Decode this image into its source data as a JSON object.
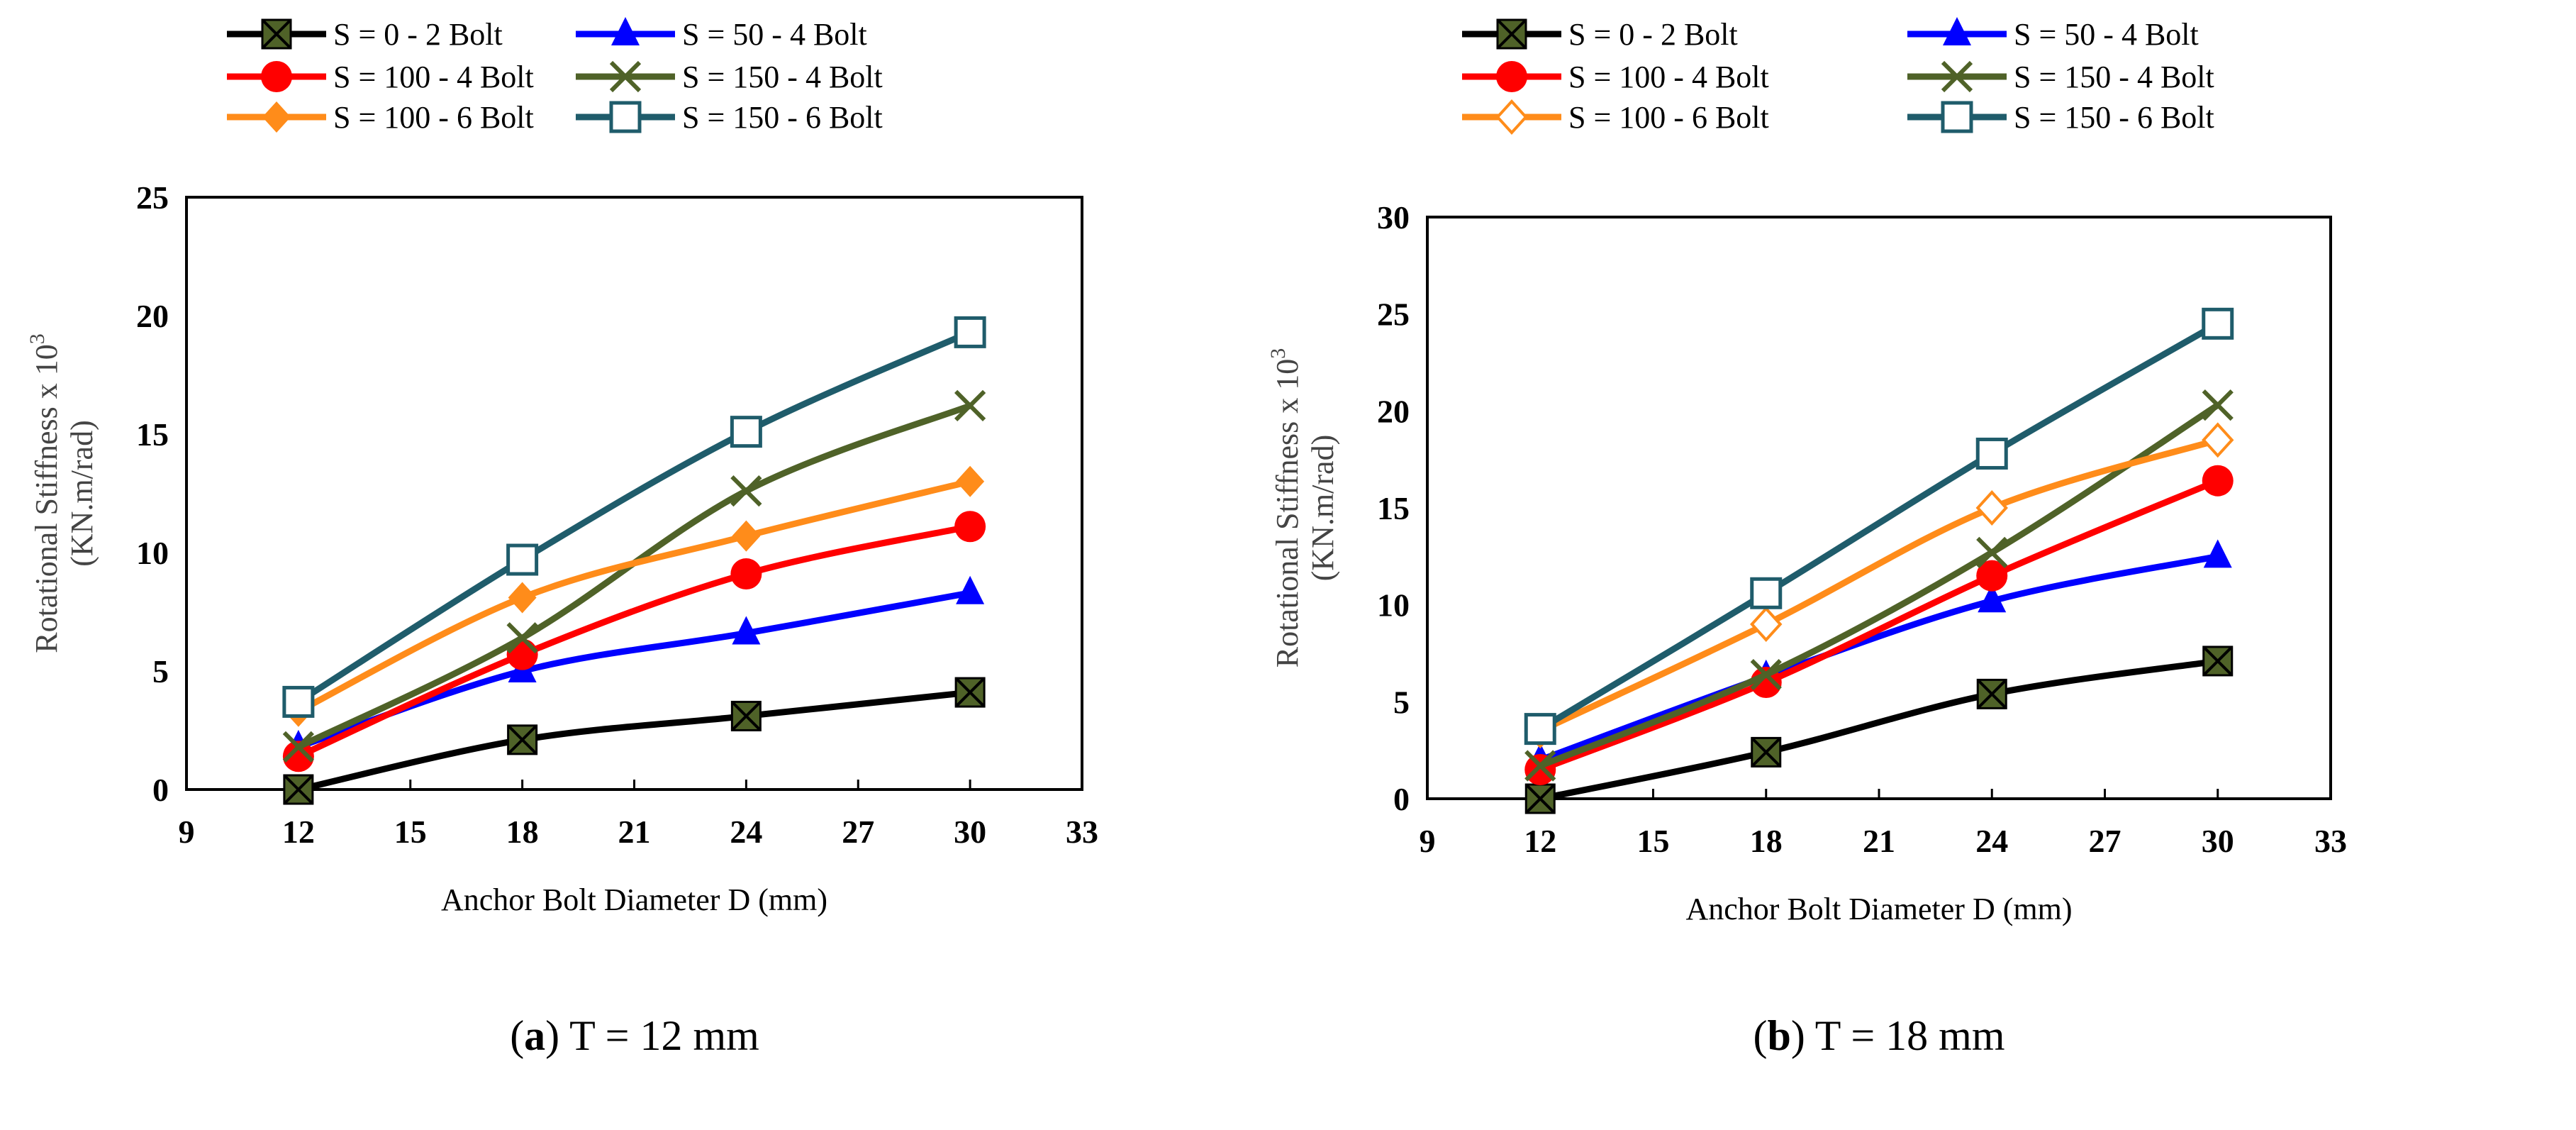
{
  "chart_data": [
    {
      "type": "line",
      "caption_letter": "a",
      "caption_rest": ") T = 12 mm",
      "caption_open": "(",
      "xlabel": "Anchor Bolt Diameter D (mm)",
      "ylabel_line1": "Rotational Stiffness x 10",
      "ylabel_sup": "3",
      "ylabel_line2": "(KN.m/rad)",
      "xlim": [
        9,
        33
      ],
      "ylim": [
        0,
        25
      ],
      "xticks": [
        9,
        12,
        15,
        18,
        21,
        24,
        27,
        30,
        33
      ],
      "yticks": [
        0,
        5,
        10,
        15,
        20,
        25
      ],
      "x": [
        12,
        18,
        24,
        30
      ],
      "legend_position": "top",
      "series": [
        {
          "name": "S = 0 - 2 Bolt",
          "color": "#000000",
          "marker": "square-x",
          "marker_color": "#4F6228",
          "values": [
            0,
            2.1,
            3.1,
            4.1
          ]
        },
        {
          "name": "S = 50 - 4 Bolt",
          "color": "#0000FF",
          "marker": "triangle",
          "marker_color": "#0000FF",
          "values": [
            1.8,
            5.0,
            6.6,
            8.3
          ]
        },
        {
          "name": "S = 100 - 4 Bolt",
          "color": "#FF0000",
          "marker": "circle",
          "marker_color": "#FF0000",
          "values": [
            1.4,
            5.7,
            9.1,
            11.1
          ]
        },
        {
          "name": "S = 150 - 4 Bolt",
          "color": "#4F6228",
          "marker": "x",
          "marker_color": "#4F6228",
          "values": [
            1.8,
            6.4,
            12.6,
            16.2
          ]
        },
        {
          "name": "S = 100 - 6 Bolt",
          "color": "#FF8C1A",
          "marker": "diamond",
          "marker_color": "#FF8C1A",
          "values": [
            3.3,
            8.1,
            10.7,
            13.0
          ]
        },
        {
          "name": "S = 150 - 6 Bolt",
          "color": "#1F5C6B",
          "marker": "open-square",
          "marker_color": "#1F5C6B",
          "values": [
            3.7,
            9.7,
            15.1,
            19.3
          ]
        }
      ]
    },
    {
      "type": "line",
      "caption_letter": "b",
      "caption_rest": ") T = 18 mm",
      "caption_open": "(",
      "xlabel": "Anchor Bolt Diameter D (mm)",
      "ylabel_line1": "Rotational Stiffness x 10",
      "ylabel_sup": "3",
      "ylabel_line2": "(KN.m/rad)",
      "xlim": [
        9,
        33
      ],
      "ylim": [
        0,
        30
      ],
      "xticks": [
        9,
        12,
        15,
        18,
        21,
        24,
        27,
        30,
        33
      ],
      "yticks": [
        0,
        5,
        10,
        15,
        20,
        25,
        30
      ],
      "x": [
        12,
        18,
        24,
        30
      ],
      "legend_position": "top",
      "series": [
        {
          "name": "S = 0 - 2 Bolt",
          "color": "#000000",
          "marker": "square-x",
          "marker_color": "#4F6228",
          "values": [
            0,
            2.4,
            5.4,
            7.1
          ]
        },
        {
          "name": "S = 50 - 4 Bolt",
          "color": "#0000FF",
          "marker": "triangle",
          "marker_color": "#0000FF",
          "values": [
            2.0,
            6.3,
            10.2,
            12.5
          ]
        },
        {
          "name": "S = 100 - 4 Bolt",
          "color": "#FF0000",
          "marker": "circle",
          "marker_color": "#FF0000",
          "values": [
            1.5,
            6.0,
            11.5,
            16.4
          ]
        },
        {
          "name": "S = 150 - 4 Bolt",
          "color": "#4F6228",
          "marker": "x",
          "marker_color": "#4F6228",
          "values": [
            1.7,
            6.4,
            12.7,
            20.3
          ]
        },
        {
          "name": "S = 100 - 6 Bolt",
          "color": "#FF8C1A",
          "marker": "open-diamond",
          "marker_color": "#FF8C1A",
          "values": [
            3.5,
            9.0,
            15.0,
            18.5
          ]
        },
        {
          "name": "S = 150 - 6 Bolt",
          "color": "#1F5C6B",
          "marker": "open-square",
          "marker_color": "#1F5C6B",
          "values": [
            3.6,
            10.6,
            17.8,
            24.5
          ]
        }
      ]
    }
  ]
}
